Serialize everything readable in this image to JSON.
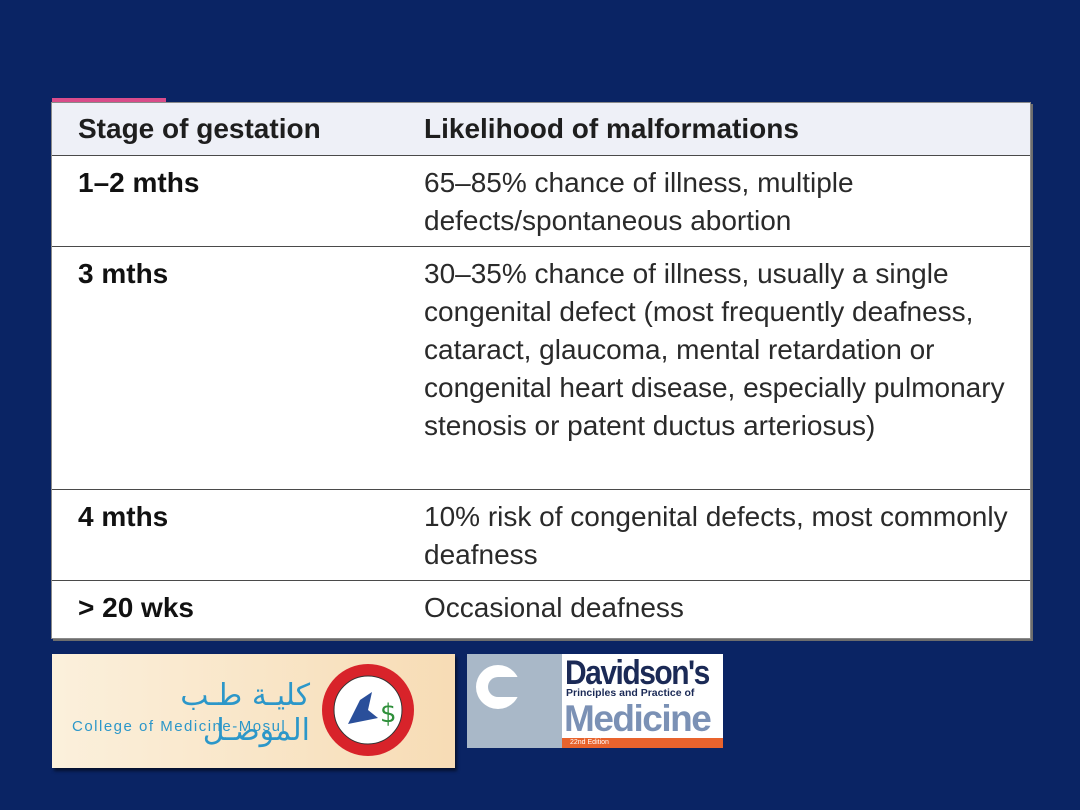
{
  "table": {
    "headers": [
      "Stage of gestation",
      "Likelihood of malformations"
    ],
    "rows": [
      {
        "stage": "1–2 mths",
        "likelihood": "65–85% chance of illness, multiple defects/spontaneous abortion"
      },
      {
        "stage": "3 mths",
        "likelihood": "30–35% chance of illness, usually a single congenital defect (most frequently deafness, cataract, glaucoma, mental retardation or congenital heart disease, especially pulmonary stenosis or patent ductus arteriosus)"
      },
      {
        "stage": "4 mths",
        "likelihood": "10% risk of congenital defects, most commonly deafness"
      },
      {
        "stage": "> 20 wks",
        "likelihood": "Occasional deafness"
      }
    ]
  },
  "logo_mosul": {
    "arabic": "كليـة طـب الموصـل",
    "english": "College of Medicine-Mosul"
  },
  "logo_davidson": {
    "title": "Davidson's",
    "subtitle": "Principles and Practice of",
    "main": "Medicine",
    "edition": "22nd Edition"
  }
}
